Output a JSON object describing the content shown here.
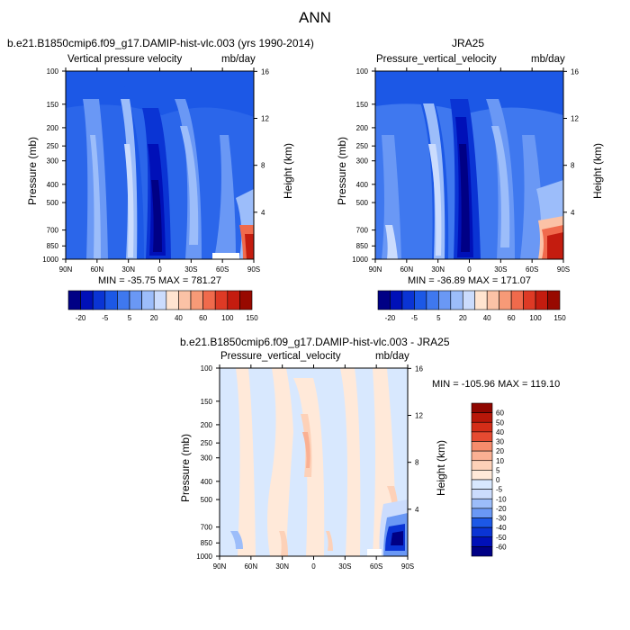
{
  "figure_title": "ANN",
  "palette": {
    "abs": [
      "#000085",
      "#0010b8",
      "#0a34d4",
      "#1c58e6",
      "#3f78ef",
      "#6a98f5",
      "#9cbdfa",
      "#cbdcfd",
      "#ffe4d0",
      "#fbc2a6",
      "#f79a77",
      "#f06a4c",
      "#de3a25",
      "#c41c0f",
      "#980900"
    ],
    "diff": [
      "#000085",
      "#0010b8",
      "#0a34d4",
      "#1c58e6",
      "#3f78ef",
      "#6a98f5",
      "#9cbdfa",
      "#cbdcfd",
      "#d8e8fe",
      "#ffe9d9",
      "#fdd1b8",
      "#fab093",
      "#f68c6c",
      "#f06a4c",
      "#e64a31",
      "#d42d18",
      "#b81709",
      "#8f0600"
    ]
  },
  "chart_data": [
    {
      "type": "contour",
      "title": "b.e21.B1850cmip6.f09_g17.DAMIP-hist-vlc.003 (yrs 1990-2014)",
      "subtitle_left": "Vertical pressure velocity",
      "subtitle_right": "mb/day",
      "xlabel": "",
      "ylabel": "Pressure (mb)",
      "y2label": "Height (km)",
      "x_ticks": [
        "90N",
        "60N",
        "30N",
        "0",
        "30S",
        "60S",
        "90S"
      ],
      "y_ticks": [
        "100",
        "150",
        "200",
        "250",
        "300",
        "400",
        "500",
        "700",
        "850",
        "1000"
      ],
      "y2_ticks": [
        "16",
        "12",
        "8",
        "4"
      ],
      "stats": "MIN = -35.75   MAX = 781.27",
      "colorbar_labels": [
        "-20",
        "-5",
        "5",
        "20",
        "40",
        "60",
        "100",
        "150"
      ],
      "latitude_range": [
        90,
        -90
      ],
      "pressure_range": [
        100,
        1000
      ],
      "min": -35.75,
      "max": 781.27
    },
    {
      "type": "contour",
      "title": "JRA25",
      "subtitle_left": "Pressure_vertical_velocity",
      "subtitle_right": "mb/day",
      "xlabel": "",
      "ylabel": "Pressure (mb)",
      "y2label": "Height (km)",
      "x_ticks": [
        "90N",
        "60N",
        "30N",
        "0",
        "30S",
        "60S",
        "90S"
      ],
      "y_ticks": [
        "100",
        "150",
        "200",
        "250",
        "300",
        "400",
        "500",
        "700",
        "850",
        "1000"
      ],
      "y2_ticks": [
        "16",
        "12",
        "8",
        "4"
      ],
      "stats": "MIN = -36.89   MAX = 171.07",
      "colorbar_labels": [
        "-20",
        "-5",
        "5",
        "20",
        "40",
        "60",
        "100",
        "150"
      ],
      "latitude_range": [
        90,
        -90
      ],
      "pressure_range": [
        100,
        1000
      ],
      "min": -36.89,
      "max": 171.07
    },
    {
      "type": "contour",
      "title": "b.e21.B1850cmip6.f09_g17.DAMIP-hist-vlc.003 - JRA25",
      "subtitle_left": "Pressure_vertical_velocity",
      "subtitle_right": "mb/day",
      "xlabel": "",
      "ylabel": "Pressure (mb)",
      "y2label": "Height (km)",
      "x_ticks": [
        "90N",
        "60N",
        "30N",
        "0",
        "30S",
        "60S",
        "90S"
      ],
      "y_ticks": [
        "100",
        "150",
        "200",
        "250",
        "300",
        "400",
        "500",
        "700",
        "850",
        "1000"
      ],
      "y2_ticks": [
        "16",
        "12",
        "8",
        "4"
      ],
      "stats": "MIN = -105.96   MAX = 119.10",
      "colorbar_labels": [
        "60",
        "50",
        "40",
        "30",
        "20",
        "10",
        "5",
        "0",
        "-5",
        "-10",
        "-20",
        "-30",
        "-40",
        "-50",
        "-60"
      ],
      "latitude_range": [
        90,
        -90
      ],
      "pressure_range": [
        100,
        1000
      ],
      "min": -105.96,
      "max": 119.1
    }
  ]
}
